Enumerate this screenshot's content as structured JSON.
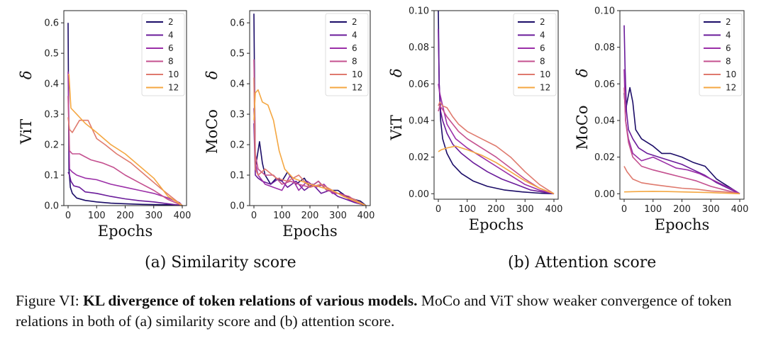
{
  "legend_colors": [
    "#1b0c67",
    "#6a1b9a",
    "#9b2fa8",
    "#c4508f",
    "#df7a6e",
    "#f4a742"
  ],
  "chart_data": [
    {
      "type": "line",
      "panel": "a-vit",
      "xlabel": "Epochs",
      "ylabel": "ViT",
      "ysym": "δ",
      "xlim": [
        0,
        400
      ],
      "ylim": [
        0,
        0.64
      ],
      "xticks": [
        "0",
        "100",
        "200",
        "300",
        "400"
      ],
      "yticks": [
        "0.0",
        "0.1",
        "0.2",
        "0.3",
        "0.4",
        "0.5",
        "0.6"
      ],
      "ytick_values": [
        0,
        0.1,
        0.2,
        0.3,
        0.4,
        0.5,
        0.6
      ],
      "series": [
        {
          "name": "2",
          "x": [
            0,
            3,
            8,
            15,
            30,
            60,
            100,
            150,
            200,
            260,
            320,
            380,
            400
          ],
          "y": [
            0.6,
            0.12,
            0.06,
            0.04,
            0.025,
            0.017,
            0.012,
            0.008,
            0.006,
            0.004,
            0.003,
            0.002,
            0.0
          ]
        },
        {
          "name": "4",
          "x": [
            0,
            5,
            10,
            20,
            40,
            60,
            100,
            150,
            200,
            250,
            300,
            350,
            400
          ],
          "y": [
            0.11,
            0.1,
            0.08,
            0.065,
            0.06,
            0.045,
            0.04,
            0.03,
            0.022,
            0.016,
            0.012,
            0.006,
            0.0
          ]
        },
        {
          "name": "6",
          "x": [
            0,
            5,
            15,
            30,
            60,
            100,
            150,
            200,
            250,
            300,
            350,
            390,
            400
          ],
          "y": [
            0.44,
            0.12,
            0.11,
            0.1,
            0.09,
            0.085,
            0.07,
            0.06,
            0.05,
            0.04,
            0.025,
            0.01,
            0.0
          ]
        },
        {
          "name": "8",
          "x": [
            0,
            5,
            15,
            40,
            80,
            120,
            160,
            200,
            250,
            300,
            350,
            400
          ],
          "y": [
            0.36,
            0.18,
            0.17,
            0.17,
            0.15,
            0.14,
            0.125,
            0.1,
            0.075,
            0.05,
            0.02,
            0.0
          ]
        },
        {
          "name": "10",
          "x": [
            0,
            5,
            15,
            40,
            70,
            100,
            130,
            170,
            220,
            270,
            320,
            360,
            400
          ],
          "y": [
            0.29,
            0.25,
            0.24,
            0.28,
            0.28,
            0.22,
            0.2,
            0.17,
            0.14,
            0.1,
            0.06,
            0.03,
            0.0
          ]
        },
        {
          "name": "12",
          "x": [
            0,
            3,
            10,
            30,
            60,
            100,
            150,
            200,
            250,
            300,
            350,
            400
          ],
          "y": [
            0.43,
            0.43,
            0.32,
            0.3,
            0.27,
            0.24,
            0.2,
            0.17,
            0.13,
            0.09,
            0.03,
            0.0
          ]
        }
      ]
    },
    {
      "type": "line",
      "panel": "a-moco",
      "xlabel": "Epochs",
      "ylabel": "MoCo",
      "ysym": "δ",
      "xlim": [
        0,
        400
      ],
      "ylim": [
        0,
        0.64
      ],
      "xticks": [
        "0",
        "100",
        "200",
        "300",
        "400"
      ],
      "yticks": [
        "0.0",
        "0.1",
        "0.2",
        "0.3",
        "0.4",
        "0.5",
        "0.6"
      ],
      "ytick_values": [
        0,
        0.1,
        0.2,
        0.3,
        0.4,
        0.5,
        0.6
      ],
      "series": [
        {
          "name": "2",
          "x": [
            0,
            5,
            10,
            20,
            30,
            40,
            60,
            80,
            100,
            120,
            150,
            180,
            200,
            230,
            260,
            300,
            330,
            360,
            380,
            400
          ],
          "y": [
            0.63,
            0.12,
            0.15,
            0.21,
            0.14,
            0.1,
            0.07,
            0.09,
            0.08,
            0.11,
            0.07,
            0.09,
            0.06,
            0.08,
            0.05,
            0.05,
            0.03,
            0.02,
            0.015,
            0.0
          ]
        },
        {
          "name": "4",
          "x": [
            0,
            5,
            15,
            30,
            60,
            90,
            120,
            150,
            180,
            210,
            240,
            270,
            300,
            330,
            360,
            400
          ],
          "y": [
            0.27,
            0.1,
            0.09,
            0.08,
            0.07,
            0.09,
            0.06,
            0.08,
            0.05,
            0.07,
            0.04,
            0.05,
            0.03,
            0.02,
            0.01,
            0.0
          ]
        },
        {
          "name": "6",
          "x": [
            0,
            5,
            15,
            40,
            70,
            100,
            130,
            160,
            190,
            220,
            250,
            280,
            310,
            340,
            370,
            400
          ],
          "y": [
            0.32,
            0.14,
            0.1,
            0.07,
            0.06,
            0.05,
            0.1,
            0.05,
            0.08,
            0.06,
            0.07,
            0.04,
            0.04,
            0.02,
            0.01,
            0.0
          ]
        },
        {
          "name": "8",
          "x": [
            0,
            5,
            15,
            40,
            70,
            100,
            130,
            160,
            200,
            230,
            260,
            300,
            340,
            370,
            400
          ],
          "y": [
            0.48,
            0.17,
            0.12,
            0.1,
            0.1,
            0.07,
            0.08,
            0.07,
            0.06,
            0.08,
            0.05,
            0.04,
            0.03,
            0.01,
            0.0
          ]
        },
        {
          "name": "10",
          "x": [
            0,
            5,
            15,
            40,
            80,
            120,
            160,
            200,
            240,
            280,
            320,
            360,
            400
          ],
          "y": [
            0.42,
            0.12,
            0.1,
            0.12,
            0.09,
            0.08,
            0.1,
            0.06,
            0.07,
            0.05,
            0.03,
            0.02,
            0.0
          ]
        },
        {
          "name": "12",
          "x": [
            0,
            5,
            15,
            30,
            50,
            70,
            90,
            110,
            140,
            170,
            200,
            240,
            280,
            320,
            360,
            400
          ],
          "y": [
            0.28,
            0.37,
            0.38,
            0.34,
            0.33,
            0.28,
            0.18,
            0.12,
            0.09,
            0.08,
            0.07,
            0.06,
            0.05,
            0.03,
            0.015,
            0.0
          ]
        }
      ]
    },
    {
      "type": "line",
      "panel": "b-vit",
      "xlabel": "Epochs",
      "ylabel": "ViT",
      "ysym": "δ",
      "xlim": [
        0,
        400
      ],
      "ylim": [
        -0.003,
        0.1
      ],
      "xticks": [
        "0",
        "100",
        "200",
        "300",
        "400"
      ],
      "yticks": [
        "0.00",
        "0.02",
        "0.04",
        "0.06",
        "0.08",
        "0.10"
      ],
      "ytick_values": [
        0,
        0.02,
        0.04,
        0.06,
        0.08,
        0.1
      ],
      "series": [
        {
          "name": "2",
          "x": [
            0,
            3,
            8,
            15,
            30,
            50,
            80,
            120,
            170,
            230,
            290,
            350,
            400
          ],
          "y": [
            0.1,
            0.06,
            0.04,
            0.03,
            0.022,
            0.016,
            0.011,
            0.007,
            0.004,
            0.002,
            0.001,
            0.0003,
            0.0
          ]
        },
        {
          "name": "4",
          "x": [
            0,
            3,
            8,
            15,
            30,
            50,
            80,
            120,
            170,
            220,
            270,
            320,
            370,
            400
          ],
          "y": [
            0.09,
            0.06,
            0.045,
            0.04,
            0.033,
            0.027,
            0.022,
            0.017,
            0.012,
            0.008,
            0.005,
            0.002,
            0.0007,
            0.0
          ]
        },
        {
          "name": "6",
          "x": [
            0,
            5,
            15,
            30,
            60,
            100,
            150,
            200,
            250,
            300,
            350,
            400
          ],
          "y": [
            0.06,
            0.055,
            0.048,
            0.038,
            0.03,
            0.025,
            0.02,
            0.015,
            0.01,
            0.005,
            0.002,
            0.0
          ]
        },
        {
          "name": "8",
          "x": [
            0,
            5,
            15,
            30,
            50,
            70,
            100,
            150,
            200,
            250,
            300,
            350,
            400
          ],
          "y": [
            0.045,
            0.048,
            0.046,
            0.042,
            0.038,
            0.034,
            0.03,
            0.025,
            0.02,
            0.014,
            0.008,
            0.003,
            0.0
          ]
        },
        {
          "name": "10",
          "x": [
            0,
            5,
            15,
            30,
            50,
            70,
            100,
            150,
            200,
            250,
            300,
            350,
            400
          ],
          "y": [
            0.048,
            0.05,
            0.048,
            0.047,
            0.042,
            0.038,
            0.034,
            0.03,
            0.026,
            0.02,
            0.012,
            0.005,
            0.0
          ]
        },
        {
          "name": "12",
          "x": [
            0,
            10,
            30,
            60,
            100,
            150,
            200,
            250,
            300,
            350,
            400
          ],
          "y": [
            0.023,
            0.024,
            0.025,
            0.026,
            0.024,
            0.021,
            0.017,
            0.012,
            0.007,
            0.003,
            0.0
          ]
        }
      ]
    },
    {
      "type": "line",
      "panel": "b-moco",
      "xlabel": "Epochs",
      "ylabel": "MoCo",
      "ysym": "δ",
      "xlim": [
        0,
        400
      ],
      "ylim": [
        -0.003,
        0.1
      ],
      "xticks": [
        "0",
        "100",
        "200",
        "300",
        "400"
      ],
      "yticks": [
        "0.00",
        "0.02",
        "0.04",
        "0.06",
        "0.08",
        "0.10"
      ],
      "ytick_values": [
        0,
        0.02,
        0.04,
        0.06,
        0.08,
        0.1
      ],
      "series": [
        {
          "name": "2",
          "x": [
            0,
            5,
            10,
            20,
            30,
            40,
            60,
            80,
            100,
            130,
            160,
            200,
            240,
            280,
            320,
            360,
            400
          ],
          "y": [
            0.055,
            0.045,
            0.05,
            0.058,
            0.05,
            0.035,
            0.03,
            0.028,
            0.026,
            0.022,
            0.022,
            0.02,
            0.017,
            0.015,
            0.008,
            0.004,
            0.0
          ]
        },
        {
          "name": "4",
          "x": [
            0,
            3,
            8,
            15,
            30,
            50,
            80,
            120,
            160,
            200,
            240,
            280,
            320,
            360,
            400
          ],
          "y": [
            0.092,
            0.07,
            0.045,
            0.035,
            0.03,
            0.025,
            0.022,
            0.02,
            0.018,
            0.016,
            0.013,
            0.01,
            0.006,
            0.003,
            0.0
          ]
        },
        {
          "name": "6",
          "x": [
            0,
            5,
            15,
            30,
            60,
            100,
            140,
            180,
            220,
            260,
            300,
            340,
            380,
            400
          ],
          "y": [
            0.068,
            0.04,
            0.03,
            0.022,
            0.018,
            0.02,
            0.017,
            0.014,
            0.013,
            0.011,
            0.008,
            0.005,
            0.002,
            0.0
          ]
        },
        {
          "name": "8",
          "x": [
            0,
            5,
            15,
            30,
            60,
            100,
            150,
            200,
            250,
            300,
            350,
            400
          ],
          "y": [
            0.058,
            0.04,
            0.028,
            0.02,
            0.015,
            0.013,
            0.011,
            0.009,
            0.007,
            0.004,
            0.002,
            0.0
          ]
        },
        {
          "name": "10",
          "x": [
            0,
            10,
            30,
            60,
            100,
            150,
            200,
            250,
            300,
            350,
            400
          ],
          "y": [
            0.015,
            0.012,
            0.008,
            0.006,
            0.005,
            0.004,
            0.003,
            0.0025,
            0.0015,
            0.001,
            0.0
          ]
        },
        {
          "name": "12",
          "x": [
            0,
            50,
            100,
            150,
            200,
            250,
            300,
            350,
            400
          ],
          "y": [
            0.001,
            0.0012,
            0.0013,
            0.0012,
            0.001,
            0.0008,
            0.0006,
            0.0003,
            0.0
          ]
        }
      ]
    }
  ],
  "subcaptions": {
    "a": "(a) Similarity score",
    "b": "(b) Attention score"
  },
  "caption": {
    "prefix": "Figure VI: ",
    "bold": "KL divergence of token relations of various models.",
    "rest": " MoCo and ViT show weaker convergence of token relations in both of (a) similarity score and (b) attention score."
  }
}
